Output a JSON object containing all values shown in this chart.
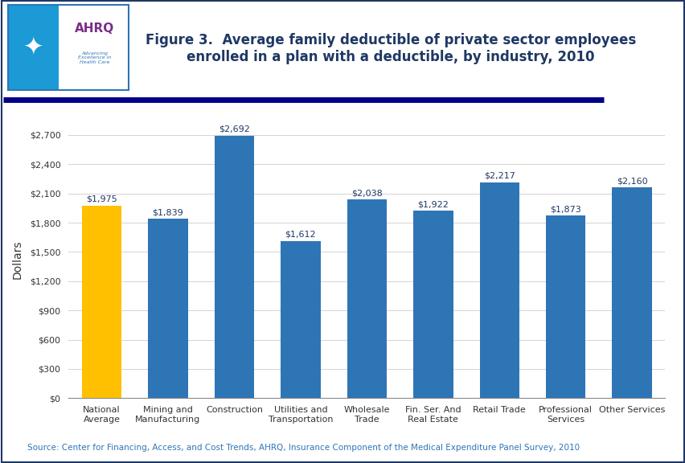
{
  "title": "Figure 3.  Average family deductible of private sector employees\nenrolled in a plan with a deductible, by industry, 2010",
  "categories": [
    "National\nAverage",
    "Mining and\nManufacturing",
    "Construction",
    "Utilities and\nTransportation",
    "Wholesale\nTrade",
    "Fin. Ser. And\nReal Estate",
    "Retail Trade",
    "Professional\nServices",
    "Other Services"
  ],
  "values": [
    1975,
    1839,
    2692,
    1612,
    2038,
    1922,
    2217,
    1873,
    2160
  ],
  "labels": [
    "$1,975",
    "$1,839",
    "$2,692",
    "$1,612",
    "$2,038",
    "$1,922",
    "$2,217",
    "$1,873",
    "$2,160"
  ],
  "bar_colors": [
    "#FFC000",
    "#2E75B6",
    "#2E75B6",
    "#2E75B6",
    "#2E75B6",
    "#2E75B6",
    "#2E75B6",
    "#2E75B6",
    "#2E75B6"
  ],
  "ylabel": "Dollars",
  "ylim": [
    0,
    2850
  ],
  "yticks": [
    0,
    300,
    600,
    900,
    1200,
    1500,
    1800,
    2100,
    2400,
    2700
  ],
  "ytick_labels": [
    "$0",
    "$300",
    "$600",
    "$900",
    "$1,200",
    "$1,500",
    "$1,800",
    "$2,100",
    "$2,400",
    "$2,700"
  ],
  "source_text": "Source: Center for Financing, Access, and Cost Trends, AHRQ, Insurance Component of the Medical Expenditure Panel Survey, 2010",
  "bg_color": "#FFFFFF",
  "plot_bg_color": "#FFFFFF",
  "title_color": "#1F3864",
  "bar_label_color": "#1F3864",
  "axis_color": "#404040",
  "border_color": "#1F3864",
  "divider_color": "#00008B",
  "source_color": "#2E75B6",
  "title_fontsize": 12,
  "label_fontsize": 8,
  "ylabel_fontsize": 10,
  "tick_fontsize": 8,
  "source_fontsize": 7.5,
  "logo_bg_left": "#1E90FF",
  "logo_bg_right": "#FFFFFF",
  "logo_border": "#2E75B6",
  "ahrq_color": "#7B2D8B",
  "ahrq_sub_color": "#2E75B6"
}
